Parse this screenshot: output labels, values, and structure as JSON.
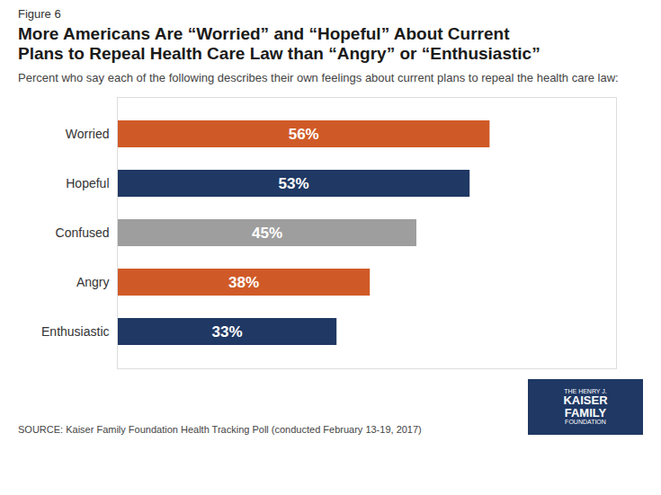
{
  "chart_data": {
    "type": "bar",
    "orientation": "horizontal",
    "title": "More Americans Are “Worried” and “Hopeful” About Current\nPlans to Repeal Health Care Law than “Angry” or “Enthusiastic”",
    "subtitle": "Percent who say each of the following describes their own feelings about current plans to repeal the health care law:",
    "annotations": [
      "Figure 6",
      "SOURCE: Kaiser Family Foundation Health Tracking Poll (conducted February 13-19, 2017)",
      "THE HENRY J.",
      "KAISER",
      "FAMILY",
      "FOUNDATION"
    ],
    "categories": [
      "Enthusiastic",
      "Angry",
      "Confused",
      "Hopeful",
      "Worried"
    ],
    "values": [
      33,
      38,
      45,
      53,
      56
    ],
    "value_labels": [
      "33%",
      "38%",
      "45%",
      "53%",
      "56%"
    ],
    "colors": [
      "#1F3864",
      "#D05A27",
      "#9E9E9E",
      "#1F3864",
      "#D05A27"
    ],
    "xlim": [
      0,
      75
    ],
    "data_labels": true,
    "tick_labels": "y",
    "grid": false
  }
}
